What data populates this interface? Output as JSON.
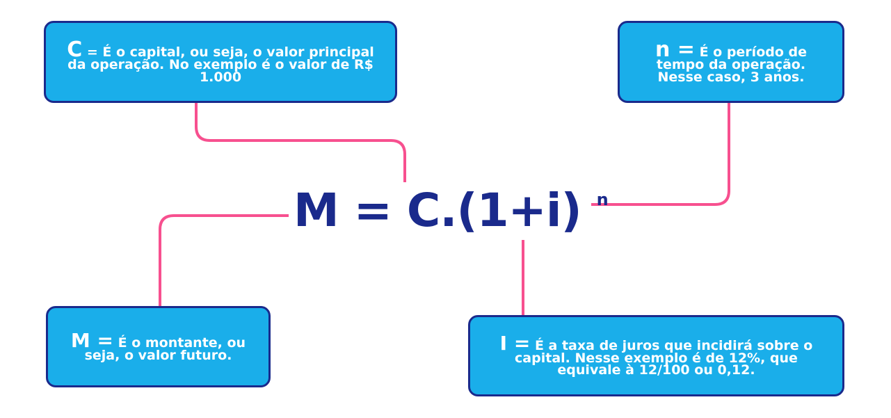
{
  "colors": {
    "box_fill": "#1aaeea",
    "box_border": "#1a2a8c",
    "connector": "#f7508f",
    "formula": "#1a2a8c",
    "text": "#ffffff"
  },
  "formula": {
    "main": "M = C.(1+i)",
    "exponent": "n"
  },
  "boxes": {
    "c": {
      "symbol": "C",
      "text": "= É o capital, ou seja, o valor principal da operação. No exemplo é o valor de R$ 1.000"
    },
    "n": {
      "symbol": "n =",
      "text": "É o período de tempo da operação. Nesse caso, 3 anos."
    },
    "m": {
      "symbol": "M =",
      "text": "É o montante, ou seja, o valor futuro."
    },
    "i": {
      "symbol": "I =",
      "text": "É a taxa de juros que incidirá sobre o capital. Nesse exemplo é de 12%, que equivale à 12/100 ou 0,12."
    }
  }
}
